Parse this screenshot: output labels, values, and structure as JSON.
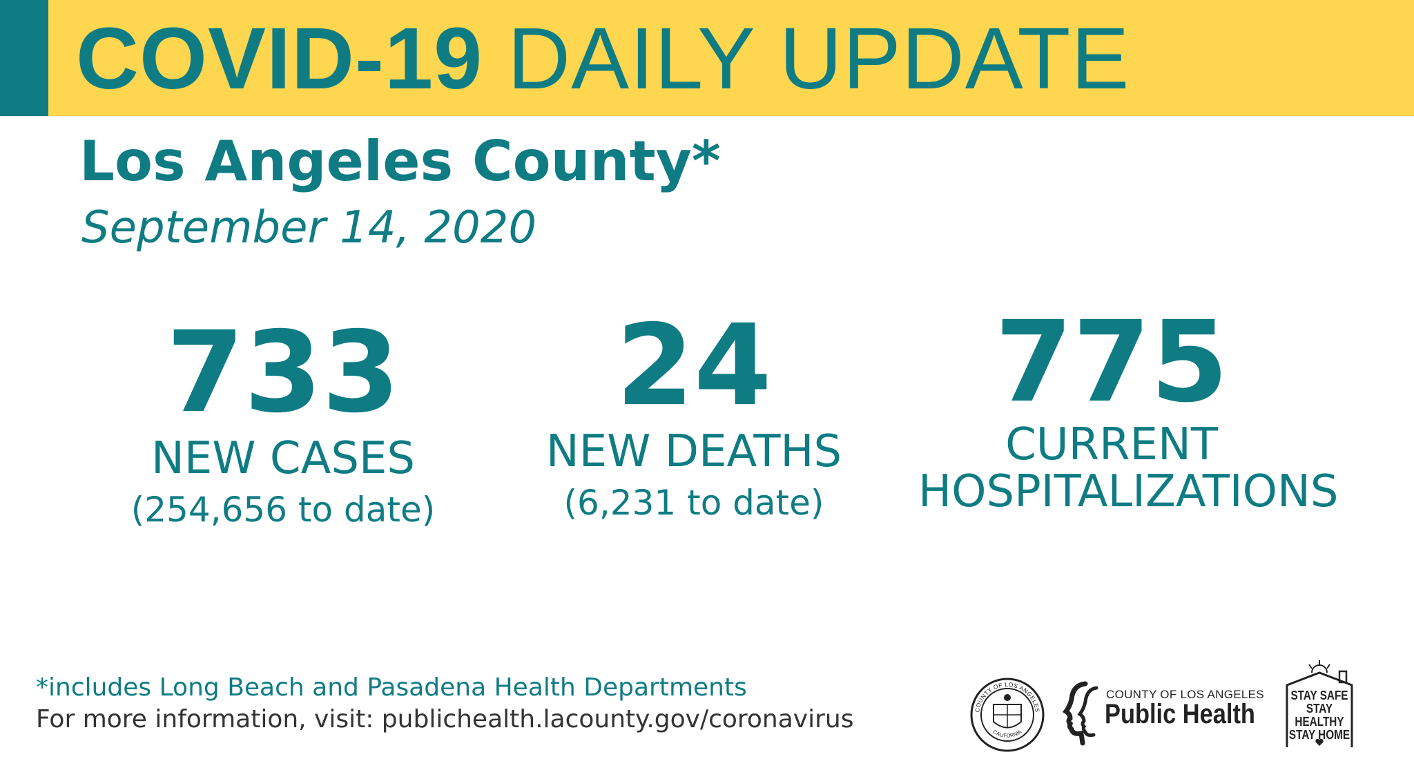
{
  "colors": {
    "teal": "#0f7c84",
    "yellow": "#fed64f",
    "dark_text": "#333333"
  },
  "header": {
    "title_bold": "COVID-19",
    "title_rest": "DAILY UPDATE"
  },
  "county": "Los Angeles County*",
  "date": "September 14, 2020",
  "stats": [
    {
      "number": "733",
      "label": "NEW CASES",
      "sub": "(254,656 to date)"
    },
    {
      "number": "24",
      "label": "NEW DEATHS",
      "sub": "(6,231 to date)"
    },
    {
      "number": "775",
      "label_line1": "CURRENT",
      "label_line2": "HOSPITALIZATIONS"
    }
  ],
  "footnote": "*includes Long Beach and Pasadena Health Departments",
  "more_info": "For more information, visit: publichealth.lacounty.gov/coronavirus",
  "logos": {
    "seal": {
      "icon": "county-seal-icon",
      "text_top": "COUNTY OF LOS ANGELES",
      "text_bottom": "CALIFORNIA"
    },
    "public_health": {
      "small": "COUNTY OF LOS ANGELES",
      "big": "Public Health"
    },
    "stay": {
      "line1": "STAY SAFE",
      "line2": "STAY HEALTHY",
      "line3": "STAY HOME"
    }
  }
}
